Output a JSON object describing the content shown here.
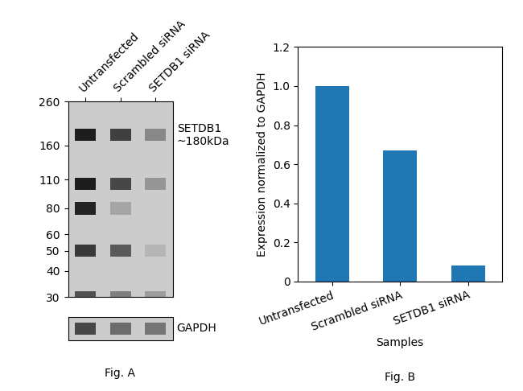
{
  "chart_data": [
    {
      "type": "blot",
      "caption": "Fig. A",
      "categories": [
        "Untransfected",
        "Scrambled siRNA",
        "SETDB1 siRNA"
      ],
      "log": "y",
      "ylim": [
        30,
        260
      ],
      "yticks": [
        260,
        160,
        110,
        80,
        60,
        50,
        40,
        30
      ],
      "y": [
        180,
        105,
        80,
        50,
        30
      ],
      "cells": [
        [
          0.9,
          0.8,
          0.55
        ],
        [
          0.9,
          0.78,
          0.5
        ],
        [
          0.88,
          0.45,
          null
        ],
        [
          0.82,
          0.72,
          0.4
        ],
        [
          0.75,
          0.58,
          0.48
        ]
      ],
      "clim": [
        0,
        1
      ],
      "annotations": [
        {
          "text": "SETDB1\n~180kDa",
          "y": 180
        }
      ],
      "control_label": "GAPDH",
      "control_cells": [
        0.78,
        0.65,
        0.62
      ]
    },
    {
      "type": "bar",
      "caption": "Fig. B",
      "categories": [
        "Untransfected",
        "Scrambled siRNA",
        "SETDB1 siRNA"
      ],
      "values": [
        1.0,
        0.67,
        0.08
      ],
      "xlabel": "Samples",
      "ylabel": "Expression normalized to GAPDH",
      "ylim": [
        0,
        1.2
      ],
      "yticks": [
        0,
        0.2,
        0.4,
        0.6,
        0.8,
        1.0,
        1.2
      ]
    }
  ]
}
